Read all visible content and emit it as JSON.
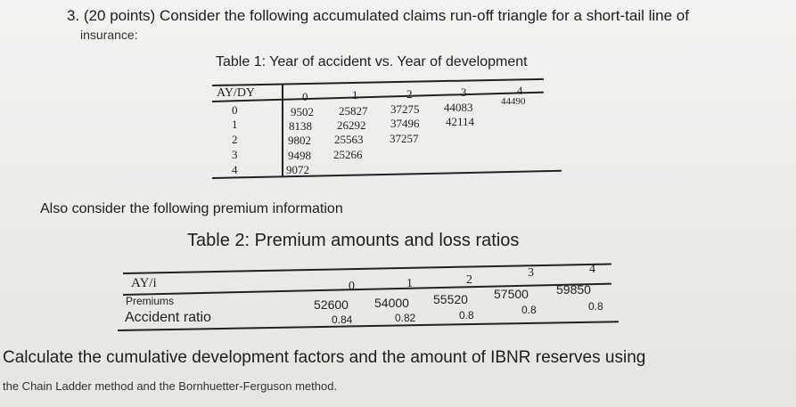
{
  "question": {
    "line1": "3. (20 points) Consider the following accumulated claims run-off triangle for a short-tail line of",
    "line2": "insurance:"
  },
  "table1": {
    "caption": "Table 1: Year of accident vs. Year of development",
    "corner": "AY/DY",
    "dev_years": [
      "0",
      "1",
      "2",
      "3",
      "4"
    ],
    "rows": [
      {
        "ay": "0",
        "values": [
          "9502",
          "25827",
          "37275",
          "44083",
          "44490"
        ]
      },
      {
        "ay": "1",
        "values": [
          "8138",
          "26292",
          "37496",
          "42114"
        ]
      },
      {
        "ay": "2",
        "values": [
          "9802",
          "25563",
          "37257"
        ]
      },
      {
        "ay": "3",
        "values": [
          "9498",
          "25266"
        ]
      },
      {
        "ay": "4",
        "values": [
          "9072"
        ]
      }
    ]
  },
  "also": "Also consider the following premium information",
  "table2": {
    "caption": "Table 2: Premium amounts and loss ratios",
    "corner": "AY/i",
    "years": [
      "0",
      "1",
      "2",
      "3",
      "4"
    ],
    "premiums_label": "Premiums",
    "premiums": [
      "52600",
      "54000",
      "55520",
      "57500",
      "59850"
    ],
    "ratio_label": "Accident ratio",
    "ratios": [
      "0.84",
      "0.82",
      "0.8",
      "0.8",
      "0.8"
    ]
  },
  "instruction": {
    "line1": "Calculate the cumulative development factors and the amount of IBNR reserves using",
    "line2": "the Chain Ladder method and the Bornhuetter-Ferguson method."
  }
}
